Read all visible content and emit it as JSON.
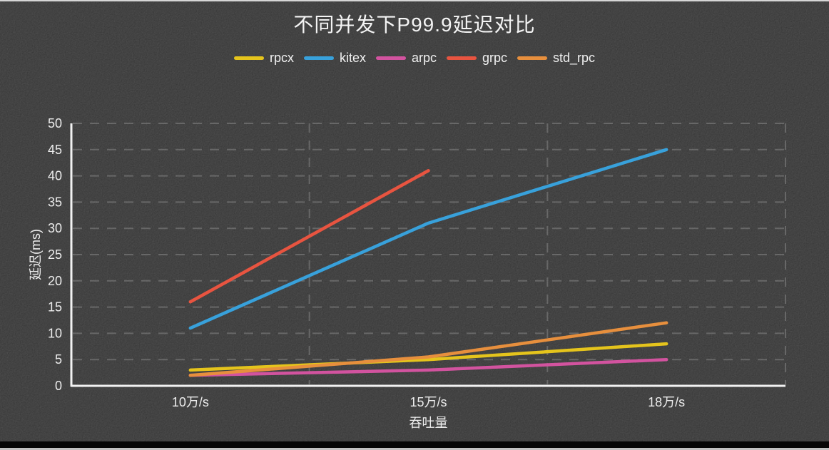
{
  "window": {
    "background_color": "#373737",
    "top_edge_color": "#d6d6d6",
    "bottom_bar_color": "#070707",
    "bottom_edge_color": "#c2c2c2"
  },
  "chart_data": {
    "type": "line",
    "title": "不同并发下P99.9延迟对比",
    "xlabel": "吞吐量",
    "ylabel": "延迟(ms)",
    "categories": [
      "10万/s",
      "15万/s",
      "18万/s"
    ],
    "series": [
      {
        "name": "rpcx",
        "color": "#e5c41c",
        "values": [
          3,
          5,
          8
        ]
      },
      {
        "name": "kitex",
        "color": "#38a1db",
        "values": [
          11,
          31,
          45
        ]
      },
      {
        "name": "arpc",
        "color": "#d2539f",
        "values": [
          2,
          3,
          5
        ]
      },
      {
        "name": "grpc",
        "color": "#e85440",
        "values": [
          16,
          41,
          null
        ]
      },
      {
        "name": "std_rpc",
        "color": "#e78f3d",
        "values": [
          2,
          5.5,
          12
        ]
      }
    ],
    "ylim": [
      0,
      50
    ],
    "ytick_step": 5,
    "ytick_labels": [
      "0",
      "5",
      "10",
      "15",
      "20",
      "25",
      "30",
      "35",
      "40",
      "45",
      "50"
    ],
    "grid": "dashed",
    "legend_position": "top",
    "axis_color": "#f2f2f2",
    "grid_color": "#9a9a9a",
    "text_color": "#ededed"
  }
}
